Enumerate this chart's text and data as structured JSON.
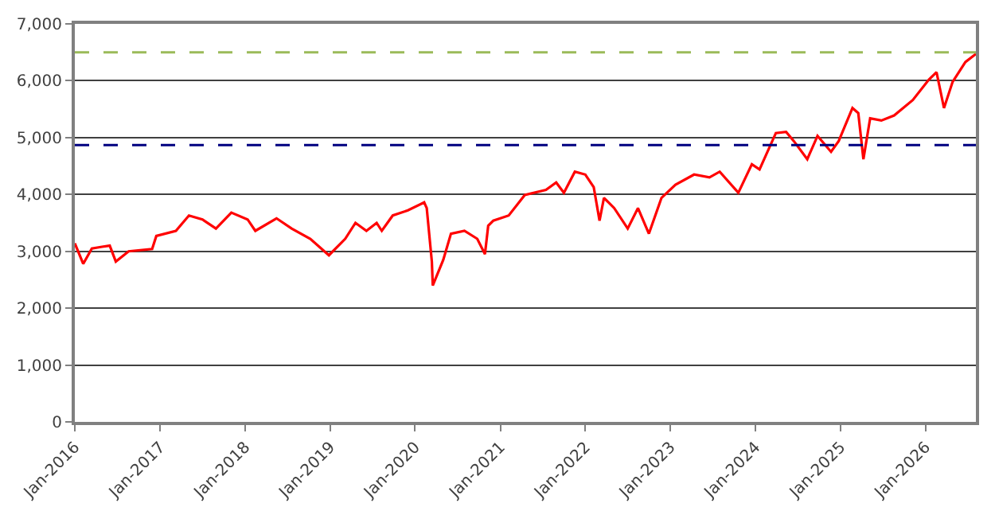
{
  "chart_data": {
    "type": "line",
    "line_style": "solid",
    "marker": "none",
    "grid": "y",
    "x": [
      "2016-01-01",
      "2016-02-06",
      "2016-03-14",
      "2016-04-27",
      "2016-05-30",
      "2016-06-25",
      "2016-08-19",
      "2016-11-28",
      "2016-12-16",
      "2017-03-10",
      "2017-05-05",
      "2017-07-02",
      "2017-08-29",
      "2017-11-03",
      "2018-01-12",
      "2018-02-14",
      "2018-05-16",
      "2018-07-20",
      "2018-10-08",
      "2018-12-27",
      "2019-03-07",
      "2019-04-20",
      "2019-06-06",
      "2019-07-20",
      "2019-08-11",
      "2019-09-27",
      "2019-12-01",
      "2020-02-09",
      "2020-02-20",
      "2020-03-13",
      "2020-03-17",
      "2020-05-01",
      "2020-06-03",
      "2020-07-31",
      "2020-09-24",
      "2020-10-27",
      "2020-11-10",
      "2020-12-02",
      "2021-02-06",
      "2021-04-16",
      "2021-07-16",
      "2021-08-29",
      "2021-10-01",
      "2021-11-17",
      "2022-01-01",
      "2022-02-06",
      "2022-03-03",
      "2022-03-22",
      "2022-05-05",
      "2022-07-02",
      "2022-08-15",
      "2022-10-01",
      "2022-11-24",
      "2023-01-23",
      "2023-04-13",
      "2023-06-18",
      "2023-08-01",
      "2023-10-20",
      "2023-12-17",
      "2024-01-19",
      "2024-03-29",
      "2024-05-12",
      "2024-06-14",
      "2024-08-11",
      "2024-09-24",
      "2024-11-21",
      "2024-12-24",
      "2025-02-21",
      "2025-03-18",
      "2025-04-09",
      "2025-05-08",
      "2025-06-25",
      "2025-08-19",
      "2025-11-07",
      "2026-01-15",
      "2026-02-17",
      "2026-03-21",
      "2026-04-27",
      "2026-06-21",
      "2026-08-05"
    ],
    "series": [
      {
        "color": "#ff0000",
        "values": [
          3140,
          2780,
          3050,
          3080,
          3100,
          2820,
          3000,
          3040,
          3270,
          3360,
          3630,
          3560,
          3400,
          3680,
          3560,
          3360,
          3580,
          3400,
          3220,
          2930,
          3220,
          3500,
          3360,
          3500,
          3360,
          3630,
          3720,
          3860,
          3760,
          2820,
          2400,
          2850,
          3310,
          3360,
          3220,
          2950,
          3450,
          3540,
          3630,
          3990,
          4080,
          4210,
          4030,
          4400,
          4350,
          4130,
          3540,
          3940,
          3760,
          3400,
          3760,
          3310,
          3940,
          4170,
          4350,
          4300,
          4400,
          4030,
          4530,
          4440,
          5080,
          5100,
          4940,
          4620,
          5030,
          4750,
          4940,
          5520,
          5430,
          4620,
          5340,
          5300,
          5390,
          5660,
          6020,
          6150,
          5520,
          5980,
          6330,
          6470
        ]
      }
    ],
    "ylim": [
      0,
      7000
    ],
    "yticks": [
      {
        "value": 0,
        "label": "0"
      },
      {
        "value": 1000,
        "label": "1,000"
      },
      {
        "value": 2000,
        "label": "2,000"
      },
      {
        "value": 3000,
        "label": "3,000"
      },
      {
        "value": 4000,
        "label": "4,000"
      },
      {
        "value": 5000,
        "label": "5,000"
      },
      {
        "value": 6000,
        "label": "6,000"
      },
      {
        "value": 7000,
        "label": "7,000"
      }
    ],
    "xlim": [
      "2016-01-01",
      "2026-08-05"
    ],
    "xticks": [
      {
        "value": "2016-01-01",
        "label": "Jan-2016"
      },
      {
        "value": "2017-01-01",
        "label": "Jan-2017"
      },
      {
        "value": "2018-01-01",
        "label": "Jan-2018"
      },
      {
        "value": "2019-01-01",
        "label": "Jan-2019"
      },
      {
        "value": "2020-01-01",
        "label": "Jan-2020"
      },
      {
        "value": "2021-01-01",
        "label": "Jan-2021"
      },
      {
        "value": "2022-01-01",
        "label": "Jan-2022"
      },
      {
        "value": "2023-01-01",
        "label": "Jan-2023"
      },
      {
        "value": "2024-01-01",
        "label": "Jan-2024"
      },
      {
        "value": "2025-01-01",
        "label": "Jan-2025"
      },
      {
        "value": "2026-01-01",
        "label": "Jan-2026"
      }
    ],
    "ref_lines": [
      {
        "axis": "y",
        "value": 6500,
        "color": "#9bbb59",
        "line_style": "dashed"
      },
      {
        "axis": "y",
        "value": 4870,
        "color": "#000080",
        "line_style": "dashed"
      }
    ]
  }
}
